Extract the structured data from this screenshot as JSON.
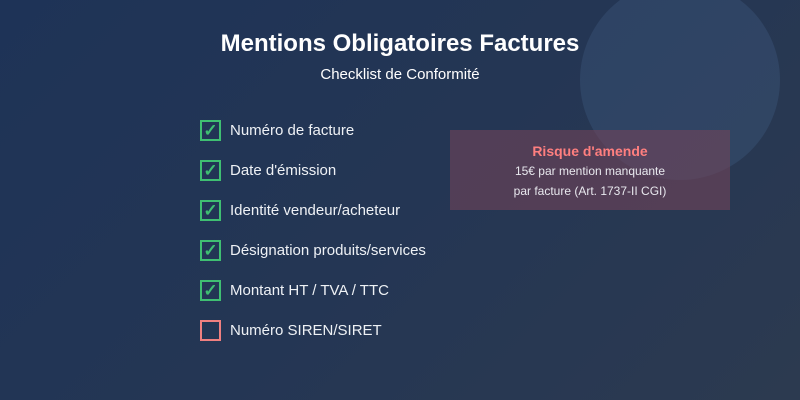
{
  "title": "Mentions Obligatoires Factures",
  "subtitle": "Checklist de Conformité",
  "checklist": [
    {
      "label": "Numéro de facture",
      "checked": true
    },
    {
      "label": "Date d'émission",
      "checked": true
    },
    {
      "label": "Identité vendeur/acheteur",
      "checked": true
    },
    {
      "label": "Désignation produits/services",
      "checked": true
    },
    {
      "label": "Montant HT / TVA / TTC",
      "checked": true
    },
    {
      "label": "Numéro SIREN/SIRET",
      "checked": false
    }
  ],
  "check_glyph": "✓",
  "warning": {
    "title": "Risque d'amende",
    "line1": "15€ par mention manquante",
    "line2": "par facture (Art. 1737-II CGI)"
  },
  "colors": {
    "checked": "#3fbf72",
    "unchecked": "#f08080",
    "warning": "#ff7f7f"
  }
}
